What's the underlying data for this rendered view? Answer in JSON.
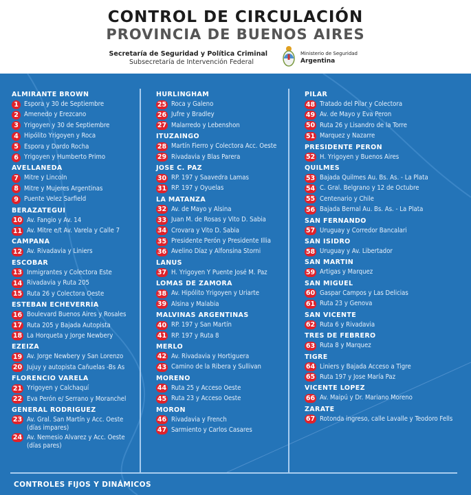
{
  "header": {
    "title": "CONTROL DE CIRCULACIÓN",
    "subtitle": "PROVINCIA DE BUENOS AIRES",
    "secretaria": "Secretaría de Seguridad y Política Criminal",
    "subsecretaria": "Subsecretaría de Intervención Federal",
    "ministerio_line1": "Ministerio de Seguridad",
    "ministerio_line2": "Argentina"
  },
  "colors": {
    "background": "#2474b8",
    "badge": "#e0222b"
  },
  "columns": [
    [
      {
        "name": "ALMIRANTE BROWN",
        "items": [
          {
            "n": "1",
            "t": "Espora y 30 de Septiembre"
          },
          {
            "n": "2",
            "t": "Amenedo y Erezcano"
          },
          {
            "n": "3",
            "t": "Yrigoyen y 30 de Septiembre"
          },
          {
            "n": "4",
            "t": "Hipólito Yrigoyen y Roca"
          },
          {
            "n": "5",
            "t": "Espora y Dardo Rocha"
          },
          {
            "n": "6",
            "t": "Yrigoyen y Humberto Primo"
          }
        ]
      },
      {
        "name": "AVELLANEDA",
        "items": [
          {
            "n": "7",
            "t": "Mitre y Lincoln"
          },
          {
            "n": "8",
            "t": "Mitre y Mujeres Argentinas"
          },
          {
            "n": "9",
            "t": "Puente Velez Sarfield"
          }
        ]
      },
      {
        "name": "BERAZATEGUI",
        "items": [
          {
            "n": "10",
            "t": "Av. Fangio y Av. 14"
          },
          {
            "n": "11",
            "t": "Av. Mitre e/t Av. Varela y Calle 7"
          }
        ]
      },
      {
        "name": "CAMPANA",
        "items": [
          {
            "n": "12",
            "t": "Av. Rivadavia y Liniers"
          }
        ]
      },
      {
        "name": "ESCOBAR",
        "items": [
          {
            "n": "13",
            "t": "Inmigrantes y Colectora Este"
          },
          {
            "n": "14",
            "t": "Rivadavia y Ruta 205"
          },
          {
            "n": "15",
            "t": "Ruta 26 y Colectora Oeste"
          }
        ]
      },
      {
        "name": "ESTEBAN ECHEVERRIA",
        "items": [
          {
            "n": "16",
            "t": "Boulevard Buenos Aires y Rosales"
          },
          {
            "n": "17",
            "t": "Ruta 205 y Bajada Autopista"
          },
          {
            "n": "18",
            "t": "La Horqueta y Jorge Newbery"
          }
        ]
      },
      {
        "name": "EZEIZA",
        "items": [
          {
            "n": "19",
            "t": "Av. Jorge Newbery y San Lorenzo"
          },
          {
            "n": "20",
            "t": "Jujuy y autopista Cañuelas -Bs As"
          }
        ]
      },
      {
        "name": "FLORENCIO VARELA",
        "items": [
          {
            "n": "21",
            "t": "Yrigoyen y Calchaquí"
          },
          {
            "n": "22",
            "t": "Eva Perón e/ Serrano y Moranchel"
          }
        ]
      },
      {
        "name": "GENERAL RODRIGUEZ",
        "items": [
          {
            "n": "23",
            "t": "Av. Gral. San Martín y Acc. Oeste",
            "t2": "(días impares)"
          },
          {
            "n": "24",
            "t": "Av. Nemesio Alvarez y Acc. Oeste",
            "t2": "(días pares)"
          }
        ]
      }
    ],
    [
      {
        "name": "HURLINGHAM",
        "items": [
          {
            "n": "25",
            "t": "Roca y Galeno"
          },
          {
            "n": "26",
            "t": "Jufre y Bradley"
          },
          {
            "n": "27",
            "t": "Malarredo y Lebenshon"
          }
        ]
      },
      {
        "name": "ITUZAINGO",
        "items": [
          {
            "n": "28",
            "t": "Martín Fierro y Colectora Acc. Oeste"
          },
          {
            "n": "29",
            "t": "Rivadavia y Blas Parera"
          }
        ]
      },
      {
        "name": "JOSE C. PAZ",
        "items": [
          {
            "n": "30",
            "t": "RP. 197 y Saavedra Lamas"
          },
          {
            "n": "31",
            "t": "RP. 197 y Oyuelas"
          }
        ]
      },
      {
        "name": "LA MATANZA",
        "items": [
          {
            "n": "32",
            "t": "Av. de Mayo y Alsina"
          },
          {
            "n": "33",
            "t": "Juan M. de Rosas y Vito D. Sabia"
          },
          {
            "n": "34",
            "t": "Crovara y Vito D. Sabia"
          },
          {
            "n": "35",
            "t": "Presidente Perón y Presidente Illia"
          },
          {
            "n": "36",
            "t": "Avelino Díaz y Alfonsina Storni"
          }
        ]
      },
      {
        "name": "LANUS",
        "items": [
          {
            "n": "37",
            "t": "H. Yrigoyen Y Puente José M. Paz"
          }
        ]
      },
      {
        "name": "LOMAS DE ZAMORA",
        "items": [
          {
            "n": "38",
            "t": "Av. Hipólito Yrigoyen y Uriarte"
          },
          {
            "n": "39",
            "t": "Alsina y Malabia"
          }
        ]
      },
      {
        "name": "MALVINAS ARGENTINAS",
        "items": [
          {
            "n": "40",
            "t": "RP. 197 y San Martín"
          },
          {
            "n": "41",
            "t": "RP. 197 y Ruta 8"
          }
        ]
      },
      {
        "name": "MERLO",
        "items": [
          {
            "n": "42",
            "t": "Av. Rivadavia y Hortiguera"
          },
          {
            "n": "43",
            "t": "Camino de la Ribera y Sullivan"
          }
        ]
      },
      {
        "name": "MORENO",
        "items": [
          {
            "n": "44",
            "t": "Ruta 25 y Acceso Oeste"
          },
          {
            "n": "45",
            "t": "Ruta 23 y Acceso Oeste"
          }
        ]
      },
      {
        "name": "MORON",
        "items": [
          {
            "n": "46",
            "t": "Rivadavia y French"
          },
          {
            "n": "47",
            "t": "Sarmiento y Carlos Casares"
          }
        ]
      }
    ],
    [
      {
        "name": "PILAR",
        "items": [
          {
            "n": "48",
            "t": "Tratado del Pilar y Colectora"
          },
          {
            "n": "49",
            "t": "Av. de Mayo y Eva Peron"
          },
          {
            "n": "50",
            "t": "Ruta 26 y Lisandro de la Torre"
          },
          {
            "n": "51",
            "t": "Marquez y Nazarre"
          }
        ]
      },
      {
        "name": "PRESIDENTE PERON",
        "items": [
          {
            "n": "52",
            "t": "H. Yrigoyen y Buenos Aires"
          }
        ]
      },
      {
        "name": "QUILMES",
        "items": [
          {
            "n": "53",
            "t": "Bajada Quilmes Au. Bs. As. - La Plata"
          },
          {
            "n": "54",
            "t": "C. Gral. Belgrano y 12 de Octubre"
          },
          {
            "n": "55",
            "t": "Centenario y Chile"
          },
          {
            "n": "56",
            "t": "Bajada Bernal Au. Bs. As. - La Plata"
          }
        ]
      },
      {
        "name": "SAN FERNANDO",
        "items": [
          {
            "n": "57",
            "t": "Uruguay y Corredor Bancalari"
          }
        ]
      },
      {
        "name": "SAN ISIDRO",
        "items": [
          {
            "n": "58",
            "t": "Uruguay y Av. Libertador"
          }
        ]
      },
      {
        "name": "SAN MARTIN",
        "items": [
          {
            "n": "59",
            "t": "Artigas y Marquez"
          }
        ]
      },
      {
        "name": "SAN MIGUEL",
        "items": [
          {
            "n": "60",
            "t": "Gaspar Campos y Las Delicias"
          },
          {
            "n": "61",
            "t": "Ruta 23 y Genova"
          }
        ]
      },
      {
        "name": "SAN VICENTE",
        "items": [
          {
            "n": "62",
            "t": "Ruta 6 y Rivadavia"
          }
        ]
      },
      {
        "name": "TRES DE FEBRERO",
        "items": [
          {
            "n": "63",
            "t": "Ruta 8 y Marquez"
          }
        ]
      },
      {
        "name": "TIGRE",
        "items": [
          {
            "n": "64",
            "t": "Liniers y Bajada Acceso a Tigre"
          },
          {
            "n": "65",
            "t": "Ruta 197 y Jose María Paz"
          }
        ]
      },
      {
        "name": "VICENTE LOPEZ",
        "items": [
          {
            "n": "66",
            "t": "Av. Maipú y Dr. Mariano Moreno"
          }
        ]
      },
      {
        "name": "ZARATE",
        "items": [
          {
            "n": "67",
            "t": "Rotonda ingreso, calle Lavalle y Teodoro Fells"
          }
        ]
      }
    ]
  ],
  "footer": {
    "label": "CONTROLES FIJOS Y DINÁMICOS"
  }
}
